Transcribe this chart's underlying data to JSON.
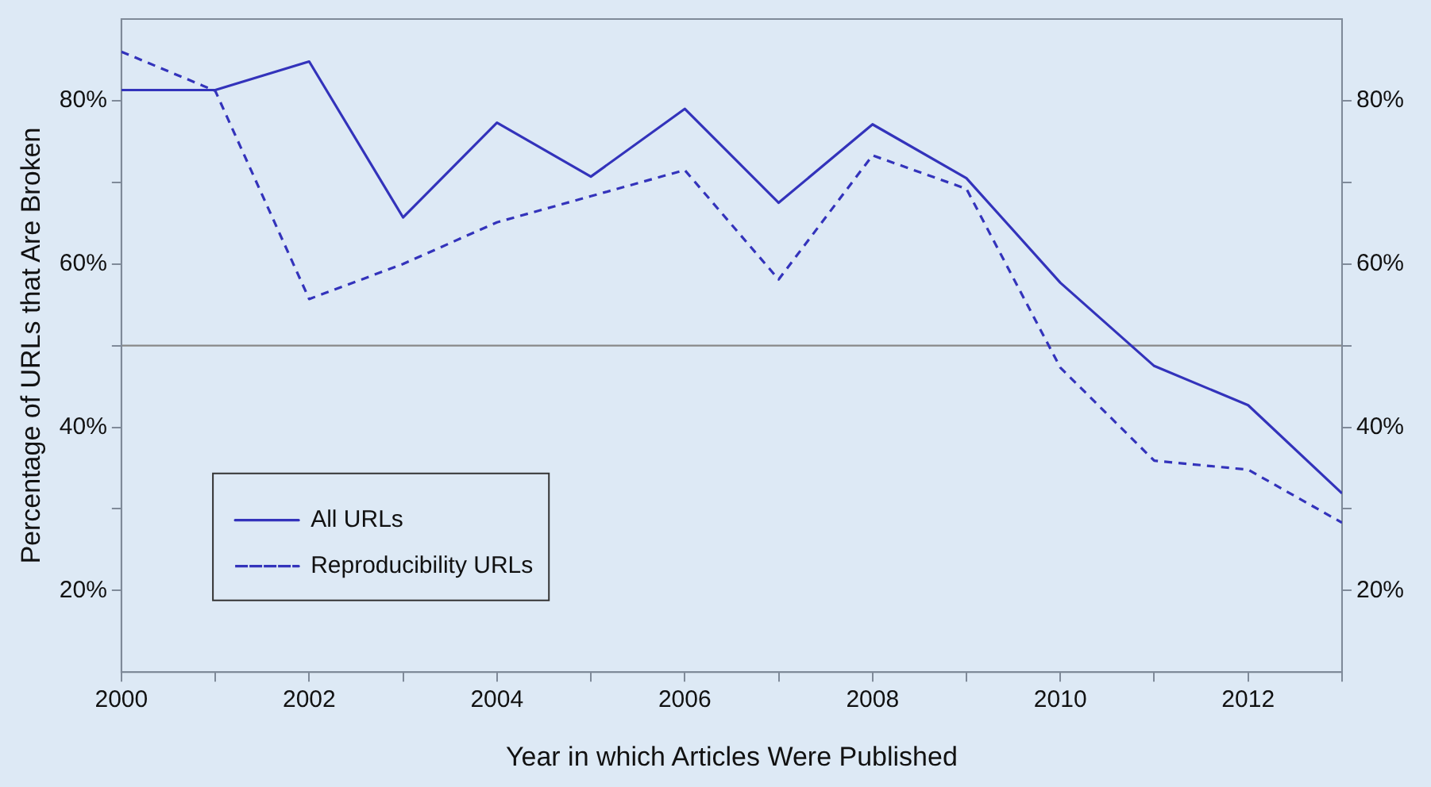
{
  "chart_data": {
    "type": "line",
    "xlabel": "Year in which Articles Were Published",
    "ylabel": "Percentage of URLs that Are Broken",
    "x": [
      2000,
      2001,
      2002,
      2003,
      2004,
      2005,
      2006,
      2007,
      2008,
      2009,
      2010,
      2011,
      2012,
      2013
    ],
    "series": [
      {
        "name": "All URLs",
        "color": "#3333bb",
        "line_style": "solid",
        "values": [
          81.3,
          81.3,
          84.8,
          65.7,
          77.3,
          70.7,
          79,
          67.5,
          77.1,
          70.5,
          57.7,
          47.5,
          42.7,
          31.9
        ]
      },
      {
        "name": "Reproducibility URLs",
        "color": "#3333bb",
        "line_style": "dashed",
        "values": [
          86,
          81.2,
          55.7,
          60,
          65.1,
          68.3,
          71.5,
          58.1,
          73.3,
          69.2,
          47.3,
          35.9,
          34.8,
          28.3
        ]
      }
    ],
    "xlim": [
      2000,
      2013
    ],
    "xticks": [
      2000,
      {
        "value": 2001,
        "label": null
      },
      2002,
      {
        "value": 2003,
        "label": null
      },
      2004,
      {
        "value": 2005,
        "label": null
      },
      2006,
      {
        "value": 2007,
        "label": null
      },
      2008,
      {
        "value": 2009,
        "label": null
      },
      2010,
      {
        "value": 2011,
        "label": null
      },
      2012,
      {
        "value": 2013,
        "label": null
      }
    ],
    "ylim": [
      10,
      90
    ],
    "yticks": [
      {
        "value": 20,
        "label": "20%"
      },
      {
        "value": 30,
        "label": null
      },
      {
        "value": 40,
        "label": "40%"
      },
      {
        "value": 50,
        "label": null
      },
      {
        "value": 60,
        "label": "60%"
      },
      {
        "value": 70,
        "label": null
      },
      {
        "value": 80,
        "label": "80%"
      }
    ],
    "y2lim": [
      10,
      90
    ],
    "y2ticks": [
      {
        "value": 20,
        "label": "20%"
      },
      {
        "value": 30,
        "label": null
      },
      {
        "value": 40,
        "label": "40%"
      },
      {
        "value": 50,
        "label": null
      },
      {
        "value": 60,
        "label": "60%"
      },
      {
        "value": 70,
        "label": null
      },
      {
        "value": 80,
        "label": "80%"
      }
    ],
    "ref_lines": [
      {
        "axis": "y",
        "value": 50,
        "color": "#888888"
      }
    ],
    "grid": false,
    "marker": "none",
    "legend": "bottom left"
  }
}
